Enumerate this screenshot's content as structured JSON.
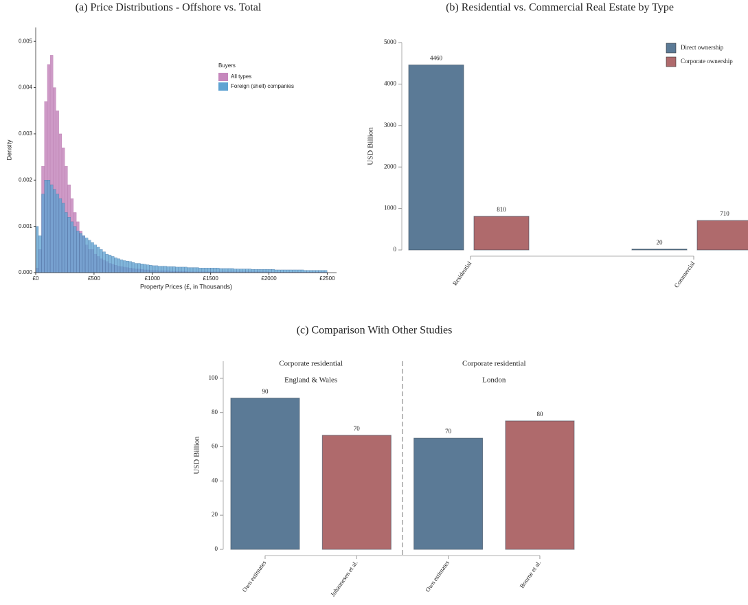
{
  "chart_data": [
    {
      "type": "histogram",
      "title": "(a)  Price Distributions - Offshore vs. Total",
      "xlabel": "Property Prices (£, in Thousands)",
      "ylabel": "Density",
      "legend_title": "Buyers",
      "bins": [
        0,
        25,
        50,
        75,
        100,
        125,
        150,
        175,
        200,
        225,
        250,
        275,
        300,
        325,
        350,
        375,
        400,
        425,
        450,
        475,
        500,
        525,
        550,
        575,
        600,
        625,
        650,
        675,
        700,
        725,
        750,
        775,
        800,
        825,
        850,
        875,
        900,
        925,
        950,
        975,
        1000,
        1025,
        1050,
        1075,
        1100,
        1125,
        1150,
        1175,
        1200,
        1225,
        1250,
        1275,
        1300,
        1325,
        1350,
        1375,
        1400,
        1425,
        1450,
        1475,
        1500,
        1525,
        1550,
        1575,
        1600,
        1625,
        1650,
        1675,
        1700,
        1725,
        1750,
        1775,
        1800,
        1825,
        1850,
        1875,
        1900,
        1925,
        1950,
        1975,
        2000,
        2025,
        2050,
        2075,
        2100,
        2125,
        2150,
        2175,
        2200,
        2225,
        2250,
        2275,
        2300,
        2325,
        2350,
        2375,
        2400,
        2425,
        2450,
        2475,
        2500
      ],
      "series": [
        {
          "name": "All types",
          "color": "#c688bd",
          "values": [
            0.0001,
            0.0005,
            0.0023,
            0.0037,
            0.0045,
            0.0047,
            0.004,
            0.0035,
            0.003,
            0.0027,
            0.0023,
            0.0019,
            0.0016,
            0.0013,
            0.0011,
            0.0009,
            0.0008,
            0.0006,
            0.0005,
            0.0005,
            0.0004,
            0.00035,
            0.0003,
            0.00027,
            0.00024,
            0.0002,
            0.00018,
            0.00016,
            0.00014,
            0.00013,
            0.00012,
            0.00011,
            0.0001,
            9e-05,
            8e-05,
            8e-05,
            7e-05,
            6e-05,
            6e-05,
            5e-05,
            5e-05,
            5e-05,
            4e-05,
            4e-05,
            4e-05,
            4e-05,
            3e-05,
            3e-05,
            3e-05,
            3e-05,
            3e-05,
            3e-05,
            2e-05,
            2e-05,
            2e-05,
            2e-05,
            2e-05,
            2e-05,
            2e-05,
            2e-05,
            2e-05,
            2e-05,
            2e-05,
            2e-05,
            2e-05,
            2e-05,
            2e-05,
            2e-05,
            2e-05,
            2e-05,
            2e-05,
            2e-05,
            2e-05,
            2e-05,
            2e-05,
            2e-05,
            2e-05,
            2e-05,
            2e-05,
            2e-05,
            1e-05,
            1e-05,
            1e-05,
            1e-05,
            1e-05,
            1e-05,
            1e-05,
            1e-05,
            1e-05,
            1e-05,
            1e-05,
            1e-05,
            1e-05,
            1e-05,
            1e-05,
            1e-05,
            1e-05,
            1e-05,
            1e-05,
            1e-05
          ]
        },
        {
          "name": "Foreign (shell) companies",
          "color": "#5fa3d2",
          "values": [
            0.001,
            0.0008,
            0.0017,
            0.002,
            0.002,
            0.0019,
            0.0018,
            0.0017,
            0.0016,
            0.0015,
            0.0013,
            0.0012,
            0.0011,
            0.001,
            0.0009,
            0.00085,
            0.0008,
            0.00075,
            0.0007,
            0.00065,
            0.0006,
            0.00055,
            0.0005,
            0.00045,
            0.0004,
            0.00038,
            0.00035,
            0.00032,
            0.0003,
            0.00028,
            0.00026,
            0.00025,
            0.00024,
            0.00022,
            0.0002,
            0.0002,
            0.00019,
            0.00018,
            0.00017,
            0.00016,
            0.00015,
            0.00015,
            0.00014,
            0.00014,
            0.00014,
            0.00013,
            0.00013,
            0.00013,
            0.00012,
            0.00012,
            0.00012,
            0.00012,
            0.00011,
            0.00011,
            0.00011,
            0.00011,
            0.0001,
            0.0001,
            0.0001,
            0.0001,
            0.0001,
            0.0001,
            0.0001,
            9e-05,
            9e-05,
            9e-05,
            9e-05,
            9e-05,
            8e-05,
            8e-05,
            8e-05,
            8e-05,
            8e-05,
            8e-05,
            7e-05,
            7e-05,
            7e-05,
            7e-05,
            7e-05,
            7e-05,
            7e-05,
            7e-05,
            6e-05,
            6e-05,
            6e-05,
            6e-05,
            6e-05,
            6e-05,
            6e-05,
            6e-05,
            6e-05,
            6e-05,
            5e-05,
            5e-05,
            5e-05,
            5e-05,
            5e-05,
            5e-05,
            5e-05,
            5e-05
          ]
        }
      ],
      "xlim": [
        0,
        2580
      ],
      "xticks": [
        {
          "value": 0,
          "label": "£0"
        },
        {
          "value": 500,
          "label": "£500"
        },
        {
          "value": 1000,
          "label": "£1000"
        },
        {
          "value": 1500,
          "label": "£1500"
        },
        {
          "value": 2000,
          "label": "£2000"
        },
        {
          "value": 2500,
          "label": "£2500"
        }
      ],
      "ylim": [
        0,
        0.0053
      ],
      "yticks": [
        {
          "value": 0,
          "label": "0.000"
        },
        {
          "value": 0.001,
          "label": "0.001"
        },
        {
          "value": 0.002,
          "label": "0.002"
        },
        {
          "value": 0.003,
          "label": "0.003"
        },
        {
          "value": 0.004,
          "label": "0.004"
        },
        {
          "value": 0.005,
          "label": "0.005"
        }
      ]
    },
    {
      "type": "bar",
      "title": "(b)  Residential vs. Commercial Real Estate by Type",
      "ylabel": "USD Billion",
      "categories": [
        "Residential",
        "Commercial"
      ],
      "series": [
        {
          "name": "Direct ownership",
          "color": "#5b7a96",
          "values": [
            4460,
            20
          ]
        },
        {
          "name": "Corporate ownership",
          "color": "#af6a6c",
          "values": [
            810,
            710
          ]
        }
      ],
      "ylim": [
        0,
        5000
      ],
      "yticks": [
        0,
        1000,
        2000,
        3000,
        4000,
        5000
      ],
      "legend": "upper right"
    },
    {
      "type": "bar",
      "title": "(c)  Comparison With Other Studies",
      "ylabel": "USD Billion",
      "categories": [
        "Own estimates",
        "Johannesen et al.",
        "Own estimates",
        "Bourne et al."
      ],
      "groups": [
        {
          "title": "Corporate residential",
          "subtitle": "England & Wales"
        },
        {
          "title": "Corporate residential",
          "subtitle": "London"
        }
      ],
      "series": [
        {
          "colors": [
            "#5b7a96",
            "#af6a6c",
            "#5b7a96",
            "#af6a6c"
          ],
          "values": [
            88.4,
            66.7,
            65,
            75.1
          ],
          "value_labels": [
            "90",
            "70",
            "70",
            "80"
          ]
        }
      ],
      "ylim": [
        0,
        110
      ],
      "yticks": [
        0,
        20,
        40,
        60,
        80,
        100
      ]
    }
  ]
}
